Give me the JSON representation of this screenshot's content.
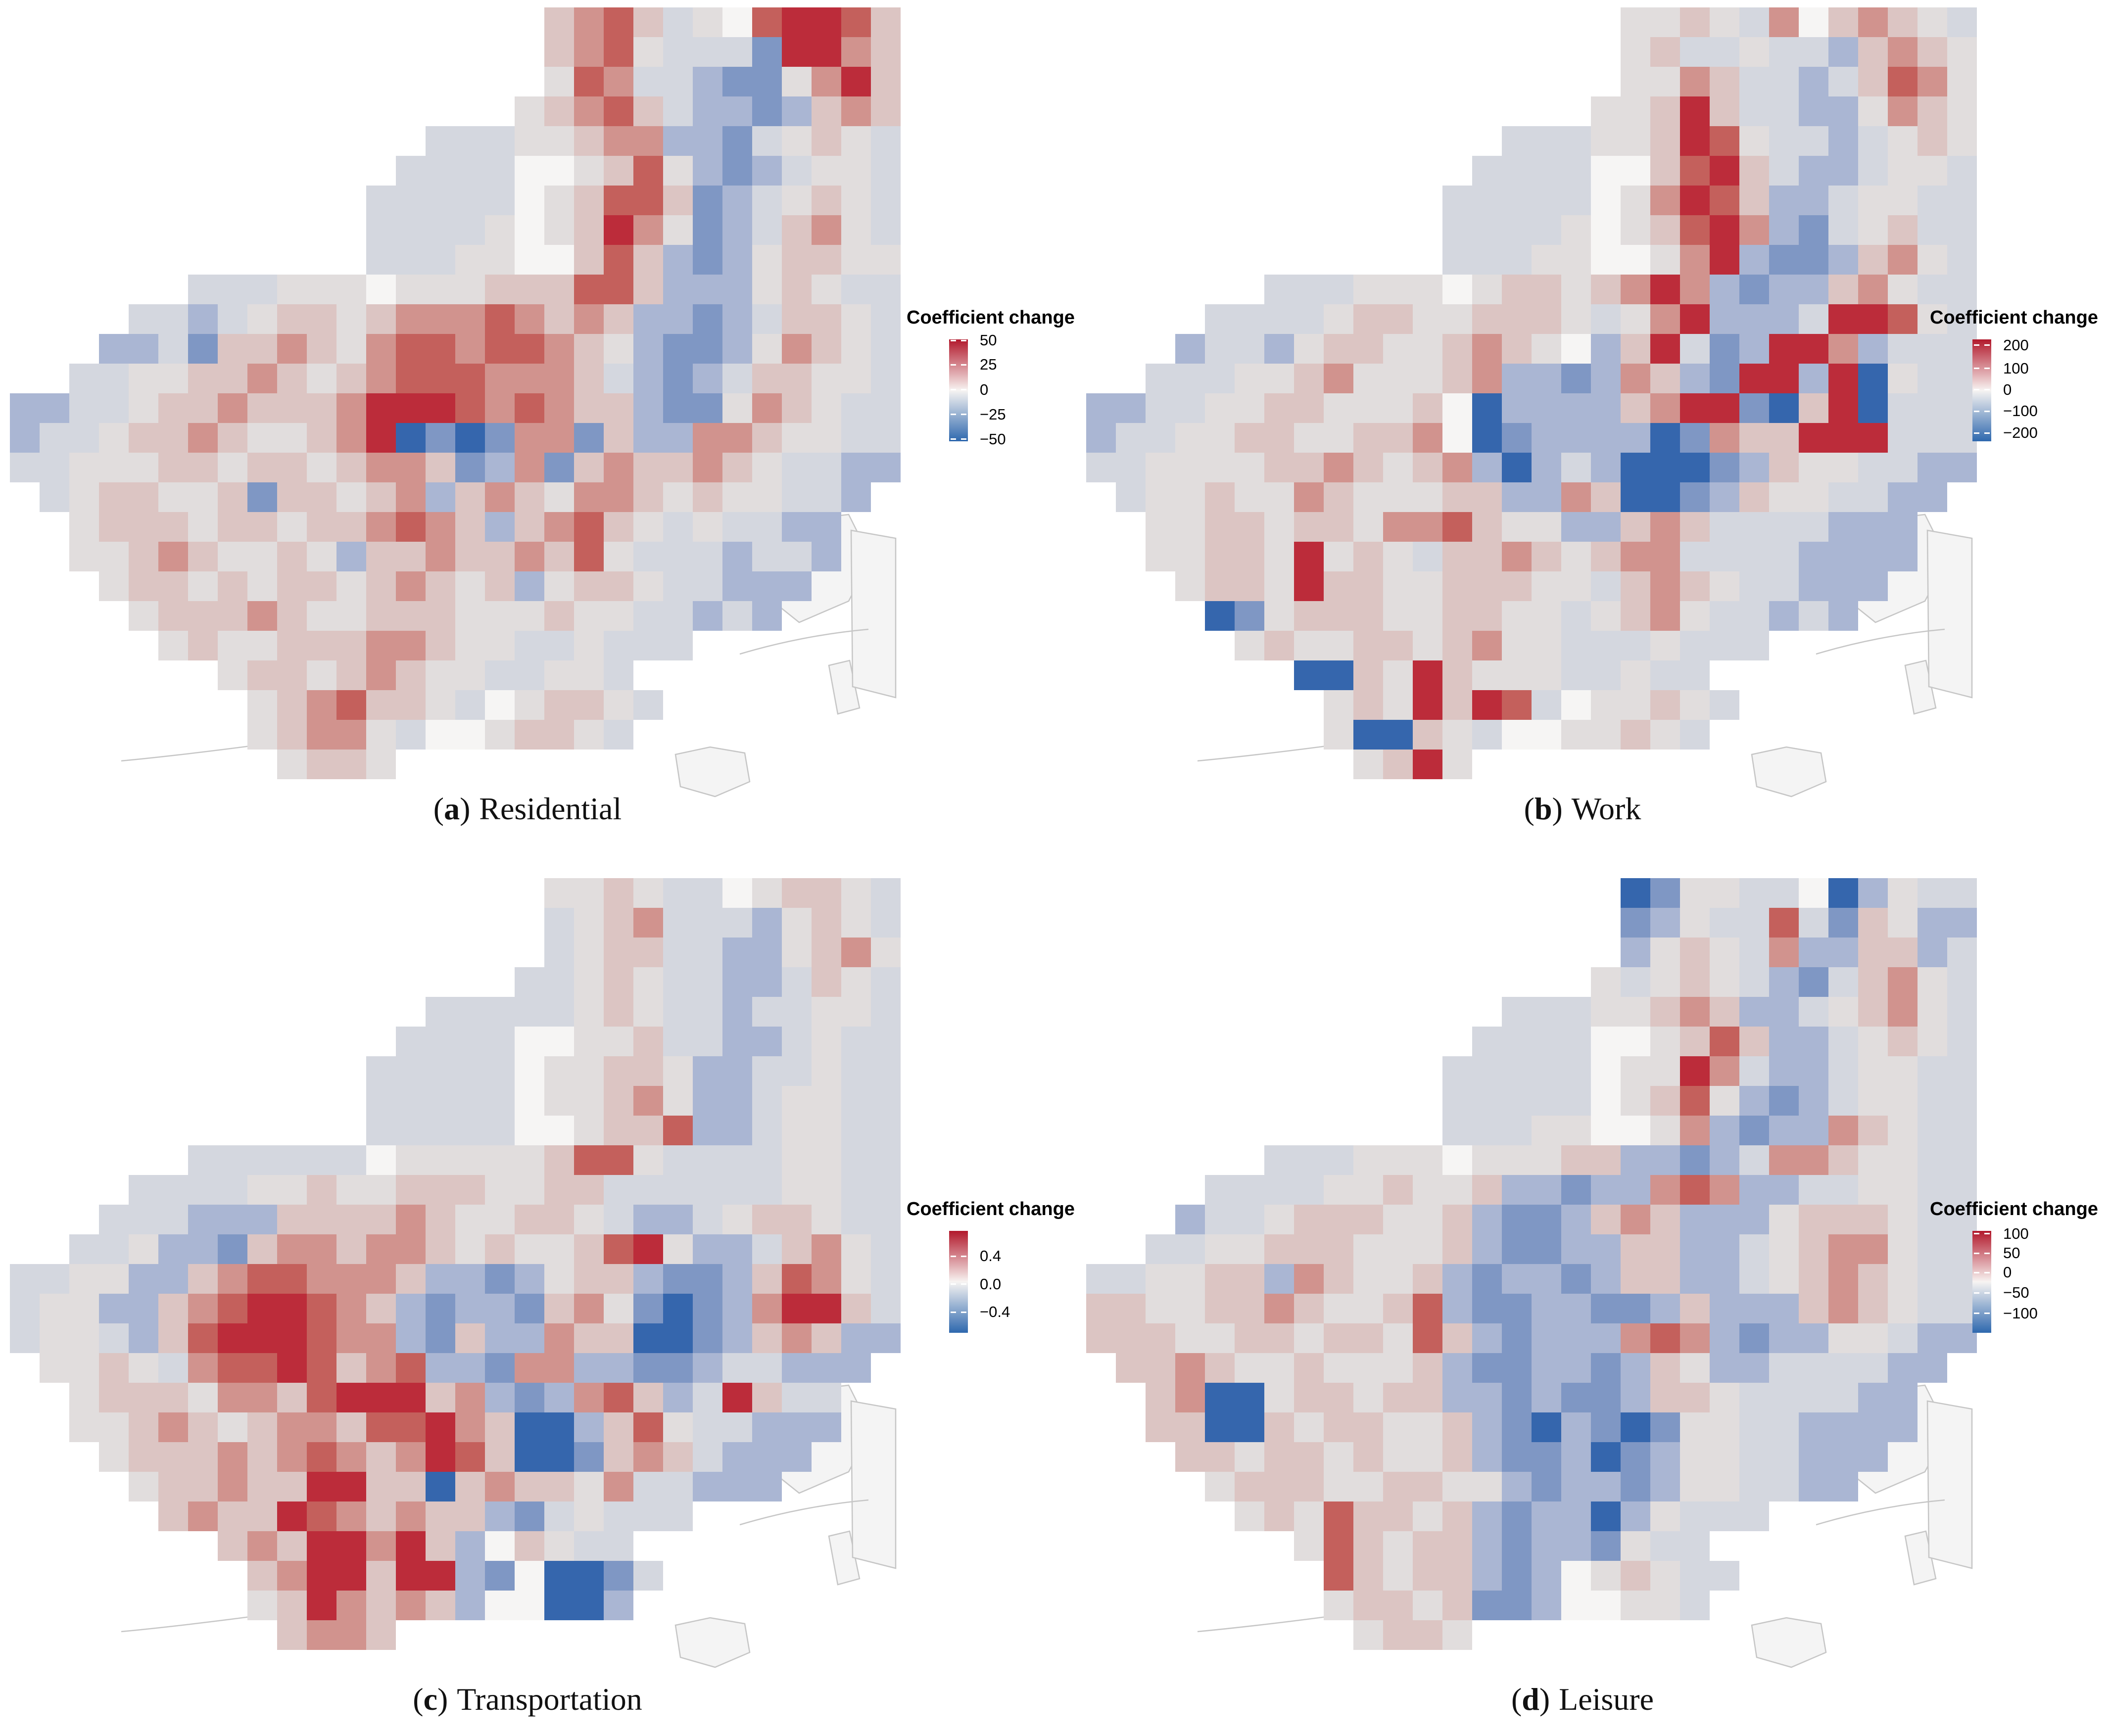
{
  "figure": {
    "background": "#ffffff"
  },
  "palette": {
    ".": null,
    "0": "#3566ad",
    "1": "#7f97c4",
    "2": "#aab6d3",
    "3": "#d4d7df",
    "4": "#e1dddd",
    "5": "#dcc5c3",
    "6": "#d1938e",
    "7": "#c4605c",
    "8": "#bc2c3a",
    "w": "#f6f5f4"
  },
  "colorbar_colors": {
    "top": "#b2182b",
    "mid": "#f7f4f2",
    "bottom": "#2e68ae"
  },
  "basemap_colors": {
    "line": "#c6c6c6",
    "fill": "#f4f4f4"
  },
  "chart_data": [
    {
      "type": "heatmap",
      "panel": "a",
      "caption": {
        "open": "(",
        "letter": "a",
        "close": ")",
        "text": "Residential"
      },
      "legend_title": "Coefficient change",
      "colorbar_ticks": [
        "50",
        "25",
        "0",
        "−25",
        "−50"
      ],
      "tick_values": [
        50,
        25,
        0,
        -25,
        -50
      ],
      "tick_positions": [
        0.012,
        0.25,
        0.494,
        0.738,
        0.98
      ],
      "scale_range_approx": [
        -50,
        50
      ],
      "grid": [
        "..................567534w78875",
        "..................567433318865",
        "..................476332114685",
        ".................4567532212565",
        "..............3334456622134543",
        ".............3333ww45742123443",
        "............33333w457751234543",
        "............33334w458641235643",
        "............33344ww57521245544",
        "......333444w44455577522245433",
        "....33234554566676565221235543",
        "...223155654677677654211246543",
        "..334455654567776665321235544 3",
        "223345565556888767655211465433",
        "233455654456801016615226654433",
        "334445545545665126156556543322",
        ".345544515545625654665454 4332.",
        "..4555455455676525675434 3322..",
        "..44565445425565565743332332..",
        "...45545455456545245543 3222...",
        "....4555654455544454433232....",
        ".....454455566544334333.......",
        ".......45545654433443.........",
        "........45675543w45543........",
        "........456643ww45543.........",
        ".........4554................."
      ]
    },
    {
      "type": "heatmap",
      "panel": "b",
      "caption": {
        "open": "(",
        "letter": "b",
        "close": ")",
        "text": "Work"
      },
      "legend_title": "Coefficient change",
      "colorbar_ticks": [
        "200",
        "100",
        "0",
        "−100",
        "−200"
      ],
      "tick_values": [
        200,
        100,
        0,
        -100,
        -200
      ],
      "tick_positions": [
        0.057,
        0.285,
        0.496,
        0.707,
        0.919
      ],
      "scale_range_approx": [
        -230,
        230
      ],
      "grid": [
        "..................445436w56543",
        "..................453343325654",
        "..................446533235764",
        ".................4458533224654",
        "..............3334458743323454",
        ".............3333ww57853223443",
        "............33333w468752234433",
        "............33334w457862134533",
        "............33344ww46821125643",
        "......333444w4554568621225 6433",
        "....33334554455543468222388743",
        "...2332455445654w2583128862333",
        "..3334456444562212652188280433",
        "223344554445w02222568810580333",
        "233445544556w01222201655888333",
        "334444556545620232000125443322",
        ".3445446544455226500125443322.",
        "..44554554667544225653333222..",
        "..44554845435565456633332222..",
        "...455485544555443565433222...",
        "....0145554455443456433232....",
        ".....454455456443334333.......",
        ".......00548544433433.........",
        "........45485873w44543........",
        "........400543ww44543.........",
        ".........4584................."
      ]
    },
    {
      "type": "heatmap",
      "panel": "c",
      "caption": {
        "open": "(",
        "letter": "c",
        "close": ")",
        "text": "Transportation"
      },
      "legend_title": "Coefficient change",
      "colorbar_ticks": [
        "0.4",
        "0.0",
        "−0.4"
      ],
      "tick_values": [
        0.4,
        0.0,
        -0.4
      ],
      "tick_positions": [
        0.25,
        0.524,
        0.798
      ],
      "scale_range_approx": [
        -0.75,
        0.75
      ],
      "grid": [
        "..................445433w45543",
        "..................345633324543",
        "..................345533224564",
        ".................3345433223543",
        "..............3333345433233443",
        ".............3333ww44533223433",
        "............33333w445542233433",
        "............33333w445642234433",
        "............33333ww45572234433",
        "......333333w44444577433334433",
        "....33334454455544553333 334433",
        "...333222555565445543223455433",
        "..334221566566545445784223 5643",
        "334422567766652212455211257643",
        "344225678876521221564101268853",
        "344325788876621522655001256522",
        ".44543677875672216622112 33222.",
        "..45554665788856212675238533..",
        "..44565456657786500257433222..",
        "...455565676568750015653222...",
        "....4556558855056554633222....",
        ".....565587656552134333.......",
        ".......565886852w5433.........",
        "........568858821w0013........",
        "........45865652ww002.........",
        ".........5665................."
      ]
    },
    {
      "type": "heatmap",
      "panel": "d",
      "caption": {
        "open": "(",
        "letter": "d",
        "close": ")",
        "text": "Leisure"
      },
      "legend_title": "Coefficient change",
      "colorbar_ticks": [
        "100",
        "50",
        "0",
        "−50",
        "−100"
      ],
      "tick_values": [
        100,
        50,
        0,
        -50,
        -100
      ],
      "tick_positions": [
        0.03,
        0.22,
        0.41,
        0.61,
        0.81
      ],
      "scale_range_approx": [
        -120,
        110
      ],
      "grid": [
        "..................014433w02433",
        "..................124337315422",
        "..................245436225523",
        ".................4345432135643",
        "..............3334456522345643",
        ".............3333ww45752234543",
        "............33333w448632234433",
        "............33333w457421234433",
        "............33344ww46212265433",
        "......333444w44455221236654433",
        "....33334454452212267622334433",
        "...233455544521125652224555433",
        "..33445554445211225522 34566433",
        "334455265445212212552234565433",
        "554455654457211221125222565433",
        "555445545547521222676212244322",
        ".5565445444521122125422333322.",
        "..56004554552212112554333322..",
        "..55005455445210210144332222..",
        "...554554544521120124433222...",
        "....4555445544212212443322....",
        ".....454755452122024333.......",
        ".......47545521221433.........",
        "........75455212w45433........",
        "........45545112ww443.........",
        ".........4554................."
      ]
    }
  ]
}
